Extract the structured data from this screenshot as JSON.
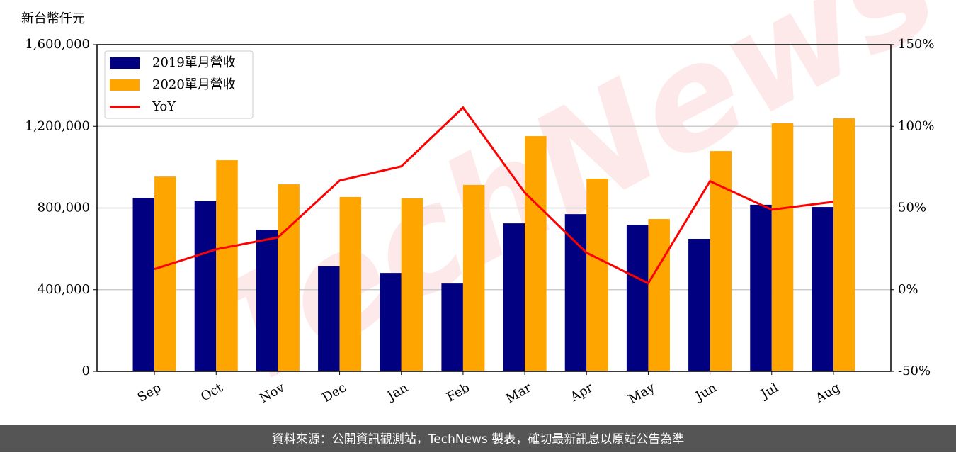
{
  "chart_data": {
    "type": "bar_line",
    "y_label": "新台幣仟元",
    "watermark": "TechNews",
    "source": "資料來源：公開資訊觀測站，TechNews 製表，確切最新訊息以原站公告為準",
    "categories": [
      "Sep",
      "Oct",
      "Nov",
      "Dec",
      "Jan",
      "Feb",
      "Mar",
      "Apr",
      "May",
      "Jun",
      "Jul",
      "Aug"
    ],
    "series": [
      {
        "name": "2019單月營收",
        "color": "#000080",
        "values": [
          850000,
          833000,
          694000,
          514000,
          482000,
          430000,
          725000,
          770000,
          718000,
          649000,
          816000,
          805000
        ]
      },
      {
        "name": "2020單月營收",
        "color": "#ffa500",
        "values": [
          954000,
          1034000,
          916000,
          854000,
          847000,
          913000,
          1152000,
          944000,
          746000,
          1079000,
          1215000,
          1239000
        ]
      },
      {
        "name": "YoY",
        "color": "#ff0000",
        "axis": "y2",
        "values": [
          12.6,
          24.7,
          32,
          66.8,
          75.5,
          111.5,
          59.4,
          22.6,
          3.9,
          66.4,
          49,
          53.8
        ]
      }
    ],
    "ylim": [
      0,
      1600000
    ],
    "yticks": [
      0,
      {
        "value": 400000,
        "label": "400,000"
      },
      {
        "value": 800000,
        "label": "800,000"
      },
      {
        "value": 1200000,
        "label": "1,200,000"
      },
      {
        "value": 1600000,
        "label": "1,600,000"
      }
    ],
    "y2lim": [
      -50,
      150
    ],
    "y2ticks": [
      {
        "value": -50,
        "label": "-50%"
      },
      {
        "value": 0,
        "label": "0%"
      },
      {
        "value": 50,
        "label": "50%"
      },
      {
        "value": 100,
        "label": "100%"
      },
      {
        "value": 150,
        "label": "150%"
      }
    ],
    "grid": true,
    "legend": "upper left"
  }
}
